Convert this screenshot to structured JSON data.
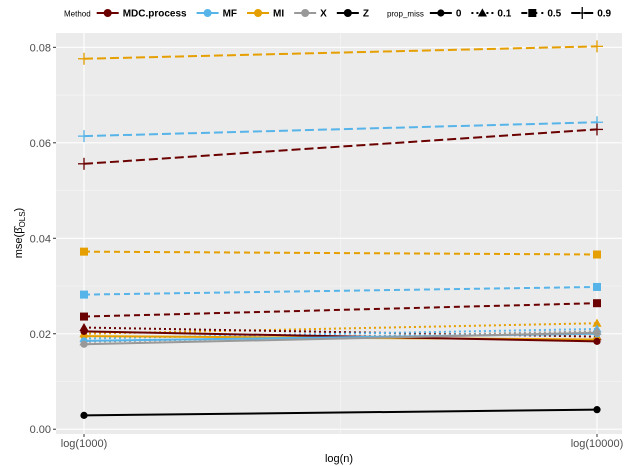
{
  "chart_data": {
    "type": "line",
    "xlabel": "log(n)",
    "ylabel": "mse(β̂_OLS)",
    "ylabel_main": "mse(",
    "ylabel_hat": "β̂",
    "ylabel_sub": "OLS",
    "ylabel_close": ")",
    "categories": [
      "log(1000)",
      "log(10000)"
    ],
    "ylim": [
      -0.001,
      0.083
    ],
    "yticks": [
      0.0,
      0.02,
      0.04,
      0.06,
      0.08
    ],
    "ytick_labels": [
      "0.00",
      "0.02",
      "0.04",
      "0.06",
      "0.08"
    ],
    "grid": true,
    "legend_position": "top",
    "legend": {
      "method_title": "Method",
      "methods": [
        {
          "name": "MDC.process",
          "color": "#6b0000"
        },
        {
          "name": "MF",
          "color": "#56b4e9"
        },
        {
          "name": "MI",
          "color": "#e69f00"
        },
        {
          "name": "X",
          "color": "#999999"
        },
        {
          "name": "Z",
          "color": "#000000"
        }
      ],
      "miss_title": "prop_miss",
      "props": [
        {
          "name": "0",
          "linetype": "solid",
          "shape": "circle"
        },
        {
          "name": "0.1",
          "linetype": "dotted",
          "shape": "triangle"
        },
        {
          "name": "0.5",
          "linetype": "dashed",
          "shape": "square"
        },
        {
          "name": "0.9",
          "linetype": "longdash",
          "shape": "plus"
        }
      ]
    },
    "series": [
      {
        "method": "MI",
        "prop_miss": "0.9",
        "values": [
          0.0776,
          0.0802
        ]
      },
      {
        "method": "MF",
        "prop_miss": "0.9",
        "values": [
          0.0614,
          0.0643
        ]
      },
      {
        "method": "MDC.process",
        "prop_miss": "0.9",
        "values": [
          0.0556,
          0.0628
        ]
      },
      {
        "method": "MI",
        "prop_miss": "0.5",
        "values": [
          0.0372,
          0.0366
        ]
      },
      {
        "method": "MF",
        "prop_miss": "0.5",
        "values": [
          0.0282,
          0.0298
        ]
      },
      {
        "method": "MDC.process",
        "prop_miss": "0.5",
        "values": [
          0.0236,
          0.0264
        ]
      },
      {
        "method": "MI",
        "prop_miss": "0.1",
        "values": [
          0.02,
          0.0222
        ]
      },
      {
        "method": "MDC.process",
        "prop_miss": "0.1",
        "values": [
          0.0213,
          0.0194
        ]
      },
      {
        "method": "MF",
        "prop_miss": "0.1",
        "values": [
          0.019,
          0.021
        ]
      },
      {
        "method": "X",
        "prop_miss": "0.1",
        "values": [
          0.0183,
          0.0205
        ]
      },
      {
        "method": "MI",
        "prop_miss": "0",
        "values": [
          0.0195,
          0.0188
        ]
      },
      {
        "method": "MDC.process",
        "prop_miss": "0",
        "values": [
          0.0205,
          0.0184
        ]
      },
      {
        "method": "MF",
        "prop_miss": "0",
        "values": [
          0.0185,
          0.02
        ]
      },
      {
        "method": "X",
        "prop_miss": "0",
        "values": [
          0.0178,
          0.0202
        ]
      },
      {
        "method": "Z",
        "prop_miss": "0",
        "values": [
          0.0029,
          0.0041
        ]
      }
    ]
  }
}
